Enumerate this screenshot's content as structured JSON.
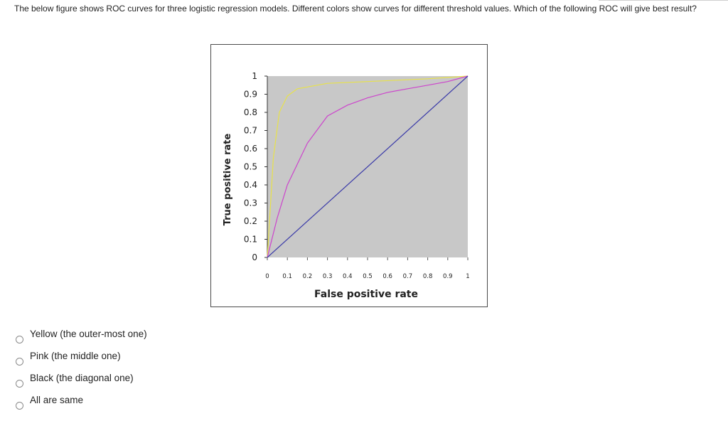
{
  "question": {
    "text": "The below figure shows ROC curves for three logistic regression models. Different colors show curves for different threshold values. Which of the following ROC will give best result?"
  },
  "chart_data": {
    "type": "line",
    "xlabel": "False positive rate",
    "ylabel": "True positive rate",
    "xlim": [
      0,
      1
    ],
    "ylim": [
      0,
      1
    ],
    "x_ticks": [
      "0",
      "0.1",
      "0.2",
      "0.3",
      "0.4",
      "0.5",
      "0.6",
      "0.7",
      "0.8",
      "0.9",
      "1"
    ],
    "y_ticks": [
      "0",
      "0.1",
      "0.2",
      "0.3",
      "0.4",
      "0.5",
      "0.6",
      "0.7",
      "0.8",
      "0.9",
      "1"
    ],
    "grid": false,
    "background": "#c8c8c8",
    "series": [
      {
        "color": "#e8e24a",
        "x": [
          0,
          0.03,
          0.06,
          0.1,
          0.15,
          0.2,
          0.3,
          0.5,
          0.8,
          1
        ],
        "y": [
          0,
          0.55,
          0.8,
          0.89,
          0.93,
          0.94,
          0.96,
          0.97,
          0.985,
          1
        ]
      },
      {
        "color": "#cc44cc",
        "x": [
          0,
          0.05,
          0.1,
          0.2,
          0.3,
          0.4,
          0.5,
          0.6,
          0.7,
          0.8,
          0.9,
          1
        ],
        "y": [
          0,
          0.22,
          0.4,
          0.63,
          0.78,
          0.84,
          0.88,
          0.91,
          0.93,
          0.95,
          0.97,
          1
        ]
      },
      {
        "color": "#3a3aa8",
        "x": [
          0,
          1
        ],
        "y": [
          0,
          1
        ]
      }
    ]
  },
  "options": [
    {
      "label": "Yellow (the outer-most one)"
    },
    {
      "label": "Pink (the middle one)"
    },
    {
      "label": "Black (the diagonal one)"
    },
    {
      "label": "All are same"
    }
  ]
}
